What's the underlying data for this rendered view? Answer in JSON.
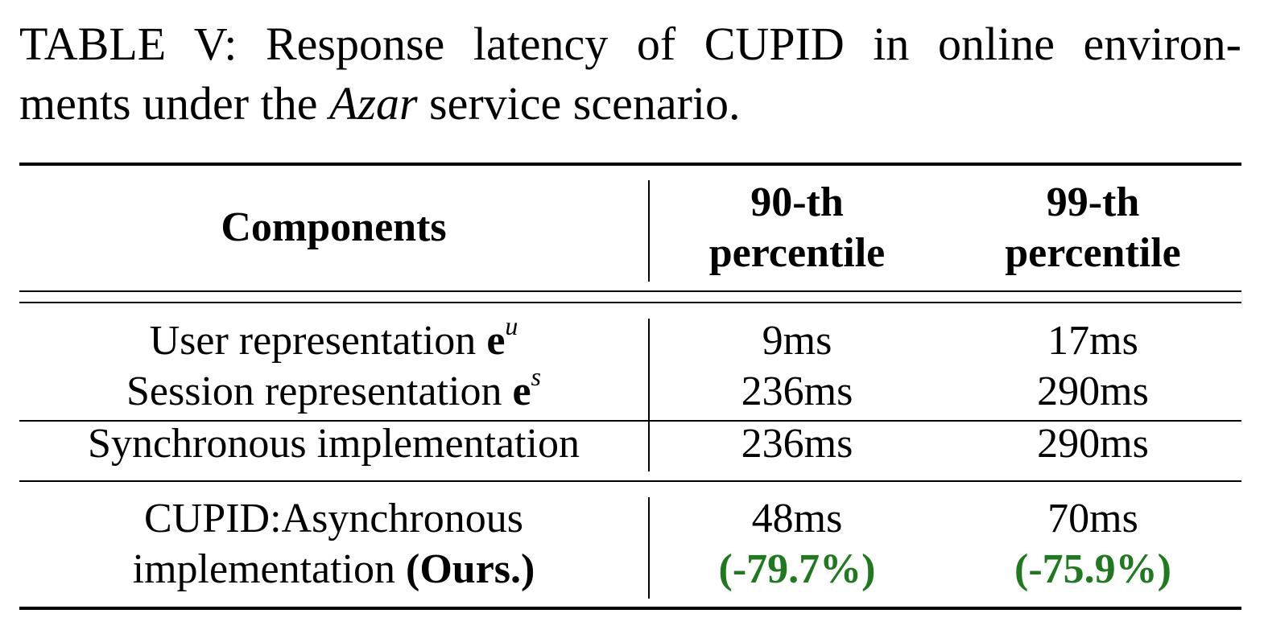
{
  "caption": {
    "line1": "TABLE V: Response latency of CUPID in online environ-",
    "line2_pre": "ments under the ",
    "line2_italic": "Azar",
    "line2_post": " service scenario."
  },
  "table": {
    "headers": {
      "components": "Components",
      "p90_line1": "90-th",
      "p90_line2": "percentile",
      "p99_line1": "99-th",
      "p99_line2": "percentile"
    },
    "rows": [
      {
        "label": "User representation ",
        "vec": "e",
        "sup": "u",
        "p90": "9ms",
        "p99": "17ms"
      },
      {
        "label": "Session representation ",
        "vec": "e",
        "sup": "s",
        "p90": "236ms",
        "p99": "290ms"
      },
      {
        "label": "Synchronous implementation",
        "p90": "236ms",
        "p99": "290ms"
      },
      {
        "label_line1": "CUPID:Asynchronous",
        "label_line2_pre": "implementation ",
        "label_line2_bold": "(Ours.)",
        "p90": "48ms",
        "p90_change": "(-79.7%)",
        "p99": "70ms",
        "p99_change": "(-75.9%)"
      }
    ]
  },
  "colors": {
    "improvement": "#1f7a1f"
  }
}
